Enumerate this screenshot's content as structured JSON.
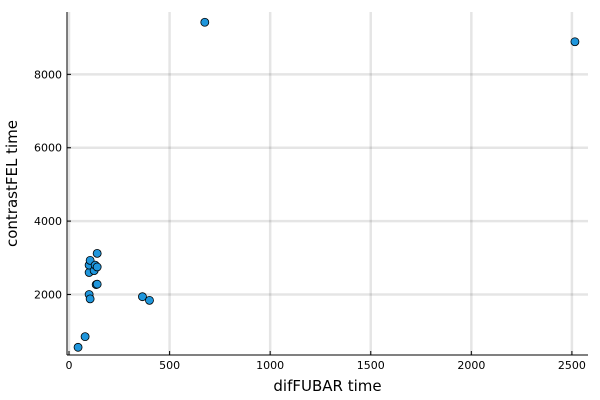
{
  "chart_data": {
    "type": "scatter",
    "xlabel": "difFUBAR time",
    "ylabel": "contrastFEL time",
    "xlim": [
      -10,
      2580
    ],
    "ylim": [
      350,
      9700
    ],
    "x_ticks": [
      0,
      500,
      1000,
      1500,
      2000,
      2500
    ],
    "y_ticks": [
      2000,
      4000,
      6000,
      8000
    ],
    "grid": true,
    "legend": "none",
    "point_color": "#1f96dc",
    "points": [
      {
        "x": 45,
        "y": 560
      },
      {
        "x": 80,
        "y": 850
      },
      {
        "x": 100,
        "y": 2000
      },
      {
        "x": 105,
        "y": 1880
      },
      {
        "x": 100,
        "y": 2600
      },
      {
        "x": 100,
        "y": 2800
      },
      {
        "x": 105,
        "y": 2930
      },
      {
        "x": 125,
        "y": 2650
      },
      {
        "x": 130,
        "y": 2800
      },
      {
        "x": 140,
        "y": 2750
      },
      {
        "x": 140,
        "y": 3120
      },
      {
        "x": 135,
        "y": 2270
      },
      {
        "x": 140,
        "y": 2280
      },
      {
        "x": 365,
        "y": 1940
      },
      {
        "x": 400,
        "y": 1840
      },
      {
        "x": 675,
        "y": 9420
      },
      {
        "x": 2515,
        "y": 8890
      }
    ]
  }
}
